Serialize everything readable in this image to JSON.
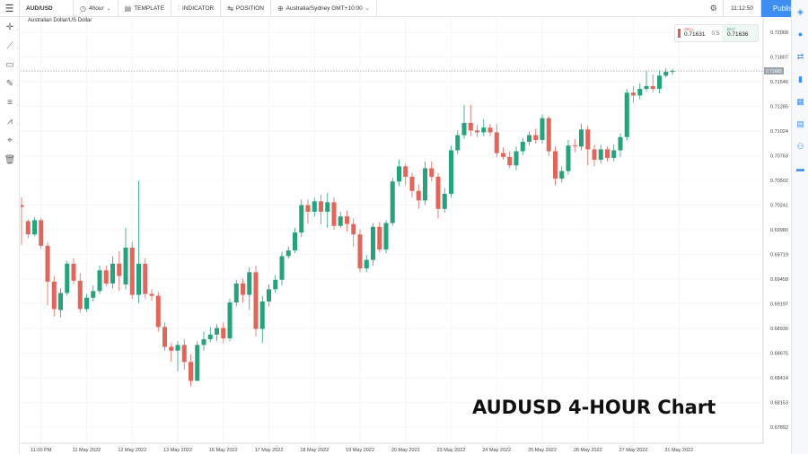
{
  "toolbar": {
    "symbol": "AUD/USD",
    "timeframe": "4hour",
    "template": "TEMPLATE",
    "indicator": "INDICATOR",
    "position": "POSITION",
    "timezone": "Australia/Sydney GMT+10:00",
    "time": "11:12:50",
    "publish": "Publish"
  },
  "chart_header": {
    "symbol_description": "Australian Dollar/US Dollar"
  },
  "quote": {
    "sell_label": "SELL",
    "sell_value": "0.71631",
    "spread": "0.5",
    "buy_label": "BUY",
    "buy_value": "0.71636"
  },
  "current_price_label": "0.71665",
  "watermark": "AUDUSD 4-HOUR Chart",
  "colors": {
    "up": "#26a27c",
    "down": "#e0655a",
    "accent": "#3f8ef2",
    "grid": "#f0f0f0"
  },
  "icons": {
    "left_tools": [
      "crosshair-icon",
      "trend-line-icon",
      "rectangle-icon",
      "brush-icon",
      "horizontal-lines-icon",
      "text-pattern-icon",
      "marker-icon",
      "trash-icon"
    ],
    "right_tools": [
      "layers-icon",
      "idea-icon",
      "exchange-icon",
      "bookmark-icon",
      "calendar-icon",
      "news-icon",
      "people-icon",
      "chat-icon"
    ]
  },
  "chart_data": {
    "type": "candlestick",
    "timeframe": "4hour",
    "ylim": [
      0.6772,
      0.7223
    ],
    "y_ticks": [
      "0.72068",
      "0.71807",
      "0.71546",
      "0.71285",
      "0.71024",
      "0.70763",
      "0.70502",
      "0.70241",
      "0.69980",
      "0.69719",
      "0.69458",
      "0.69197",
      "0.68936",
      "0.68675",
      "0.68414",
      "0.68153",
      "0.67892"
    ],
    "x_ticks": [
      {
        "label": "11:00 PM",
        "index": 3
      },
      {
        "label": "11 May 2022",
        "index": 10
      },
      {
        "label": "12 May 2022",
        "index": 17
      },
      {
        "label": "13 May 2022",
        "index": 24
      },
      {
        "label": "16 May 2022",
        "index": 31
      },
      {
        "label": "17 May 2022",
        "index": 38
      },
      {
        "label": "18 May 2022",
        "index": 45
      },
      {
        "label": "19 May 2022",
        "index": 52
      },
      {
        "label": "20 May 2022",
        "index": 59
      },
      {
        "label": "23 May 2022",
        "index": 66
      },
      {
        "label": "24 May 2022",
        "index": 73
      },
      {
        "label": "25 May 2022",
        "index": 80
      },
      {
        "label": "26 May 2022",
        "index": 87
      },
      {
        "label": "27 May 2022",
        "index": 94
      },
      {
        "label": "31 May 2022",
        "index": 101
      }
    ],
    "candles": [
      [
        0.7024,
        0.7022,
        0.7032,
        0.6982
      ],
      [
        0.7007,
        0.6993,
        0.7009,
        0.6989
      ],
      [
        0.6993,
        0.7008,
        0.7011,
        0.6991
      ],
      [
        0.7008,
        0.6981,
        0.701,
        0.6978
      ],
      [
        0.6981,
        0.6943,
        0.6985,
        0.6918
      ],
      [
        0.6943,
        0.6914,
        0.6949,
        0.6906
      ],
      [
        0.6913,
        0.6931,
        0.6936,
        0.6905
      ],
      [
        0.6931,
        0.6962,
        0.6965,
        0.6928
      ],
      [
        0.6962,
        0.6944,
        0.6968,
        0.694
      ],
      [
        0.6944,
        0.6914,
        0.6952,
        0.691
      ],
      [
        0.6914,
        0.6926,
        0.693,
        0.6911
      ],
      [
        0.6926,
        0.6933,
        0.6939,
        0.6922
      ],
      [
        0.6933,
        0.6955,
        0.696,
        0.693
      ],
      [
        0.6955,
        0.6941,
        0.696,
        0.6938
      ],
      [
        0.6941,
        0.6962,
        0.697,
        0.6936
      ],
      [
        0.6962,
        0.6949,
        0.6975,
        0.6933
      ],
      [
        0.694,
        0.6979,
        0.7,
        0.6935
      ],
      [
        0.6979,
        0.6929,
        0.6985,
        0.6925
      ],
      [
        0.6929,
        0.6962,
        0.705,
        0.692
      ],
      [
        0.6962,
        0.693,
        0.6968,
        0.6925
      ],
      [
        0.693,
        0.6928,
        0.6935,
        0.6923
      ],
      [
        0.6928,
        0.6895,
        0.6932,
        0.689
      ],
      [
        0.6895,
        0.6874,
        0.69,
        0.687
      ],
      [
        0.6874,
        0.687,
        0.6878,
        0.6858
      ],
      [
        0.687,
        0.6876,
        0.688,
        0.6848
      ],
      [
        0.6876,
        0.6858,
        0.6882,
        0.685
      ],
      [
        0.6858,
        0.6838,
        0.6866,
        0.6832
      ],
      [
        0.6838,
        0.6876,
        0.688,
        0.6845
      ],
      [
        0.6876,
        0.6882,
        0.689,
        0.687
      ],
      [
        0.6882,
        0.6887,
        0.6895,
        0.6879
      ],
      [
        0.6887,
        0.6894,
        0.6898,
        0.688
      ],
      [
        0.6894,
        0.6883,
        0.69,
        0.6878
      ],
      [
        0.6883,
        0.6921,
        0.6925,
        0.688
      ],
      [
        0.6921,
        0.6941,
        0.6945,
        0.6917
      ],
      [
        0.6941,
        0.6929,
        0.6946,
        0.6921
      ],
      [
        0.6929,
        0.6953,
        0.6958,
        0.6913
      ],
      [
        0.6953,
        0.6893,
        0.696,
        0.6885
      ],
      [
        0.6893,
        0.6922,
        0.6928,
        0.6878
      ],
      [
        0.6922,
        0.6935,
        0.694,
        0.6917
      ],
      [
        0.6935,
        0.6945,
        0.695,
        0.6931
      ],
      [
        0.6945,
        0.697,
        0.6975,
        0.6939
      ],
      [
        0.697,
        0.6976,
        0.698,
        0.6967
      ],
      [
        0.6976,
        0.6995,
        0.7,
        0.6973
      ],
      [
        0.6995,
        0.7024,
        0.703,
        0.699
      ],
      [
        0.7024,
        0.7017,
        0.703,
        0.7004
      ],
      [
        0.7017,
        0.7028,
        0.7032,
        0.7012
      ],
      [
        0.7028,
        0.7017,
        0.7035,
        0.7004
      ],
      [
        0.7017,
        0.7027,
        0.7037,
        0.7
      ],
      [
        0.7027,
        0.7002,
        0.7032,
        0.6998
      ],
      [
        0.7002,
        0.7012,
        0.7017,
        0.7
      ],
      [
        0.7012,
        0.7004,
        0.7018,
        0.6996
      ],
      [
        0.7004,
        0.6993,
        0.701,
        0.698
      ],
      [
        0.6993,
        0.6957,
        0.6998,
        0.6953
      ],
      [
        0.6957,
        0.6966,
        0.6971,
        0.6953
      ],
      [
        0.6966,
        0.7001,
        0.7005,
        0.696
      ],
      [
        0.7001,
        0.6977,
        0.7006,
        0.6974
      ],
      [
        0.6977,
        0.7005,
        0.7008,
        0.6973
      ],
      [
        0.7005,
        0.7049,
        0.7053,
        0.7002
      ],
      [
        0.7049,
        0.7065,
        0.7072,
        0.7044
      ],
      [
        0.7065,
        0.7054,
        0.7068,
        0.7045
      ],
      [
        0.7054,
        0.7039,
        0.7058,
        0.7032
      ],
      [
        0.7039,
        0.7029,
        0.7046,
        0.702
      ],
      [
        0.7029,
        0.7063,
        0.707,
        0.7024
      ],
      [
        0.7063,
        0.7054,
        0.707,
        0.7049
      ],
      [
        0.7054,
        0.702,
        0.7058,
        0.701
      ],
      [
        0.702,
        0.7036,
        0.7042,
        0.7016
      ],
      [
        0.7036,
        0.7082,
        0.7087,
        0.7032
      ],
      [
        0.7082,
        0.7098,
        0.7103,
        0.7078
      ],
      [
        0.7098,
        0.7111,
        0.713,
        0.7094
      ],
      [
        0.7111,
        0.7103,
        0.713,
        0.7097
      ],
      [
        0.7103,
        0.7101,
        0.7109,
        0.7096
      ],
      [
        0.7101,
        0.7106,
        0.7115,
        0.7097
      ],
      [
        0.7106,
        0.7101,
        0.711,
        0.7097
      ],
      [
        0.7101,
        0.7079,
        0.711,
        0.7075
      ],
      [
        0.7079,
        0.7075,
        0.7085,
        0.7072
      ],
      [
        0.7075,
        0.7066,
        0.7081,
        0.7063
      ],
      [
        0.7066,
        0.7081,
        0.7086,
        0.7061
      ],
      [
        0.7081,
        0.7091,
        0.7095,
        0.7077
      ],
      [
        0.7091,
        0.7098,
        0.7102,
        0.7087
      ],
      [
        0.7098,
        0.7093,
        0.7105,
        0.7089
      ],
      [
        0.7093,
        0.7116,
        0.712,
        0.7089
      ],
      [
        0.7116,
        0.7081,
        0.7118,
        0.7076
      ],
      [
        0.7081,
        0.7052,
        0.7086,
        0.7045
      ],
      [
        0.7052,
        0.706,
        0.7065,
        0.7048
      ],
      [
        0.706,
        0.7087,
        0.7093,
        0.7056
      ],
      [
        0.7087,
        0.7086,
        0.7094,
        0.708
      ],
      [
        0.7086,
        0.7104,
        0.711,
        0.7082
      ],
      [
        0.7104,
        0.7083,
        0.7108,
        0.7066
      ],
      [
        0.7083,
        0.7072,
        0.7088,
        0.7065
      ],
      [
        0.7072,
        0.7083,
        0.7088,
        0.7068
      ],
      [
        0.7083,
        0.7074,
        0.7086,
        0.707
      ],
      [
        0.7074,
        0.7082,
        0.7088,
        0.707
      ],
      [
        0.7082,
        0.7096,
        0.71,
        0.7075
      ],
      [
        0.7096,
        0.7143,
        0.7147,
        0.7092
      ],
      [
        0.7143,
        0.714,
        0.715,
        0.7132
      ],
      [
        0.714,
        0.7147,
        0.7153,
        0.7136
      ],
      [
        0.7147,
        0.715,
        0.7166,
        0.7144
      ],
      [
        0.715,
        0.7147,
        0.7162,
        0.7144
      ],
      [
        0.7147,
        0.7161,
        0.7167,
        0.7142
      ],
      [
        0.7161,
        0.7165,
        0.7169,
        0.7159
      ],
      [
        0.7165,
        0.7166,
        0.7168,
        0.7162
      ]
    ]
  }
}
